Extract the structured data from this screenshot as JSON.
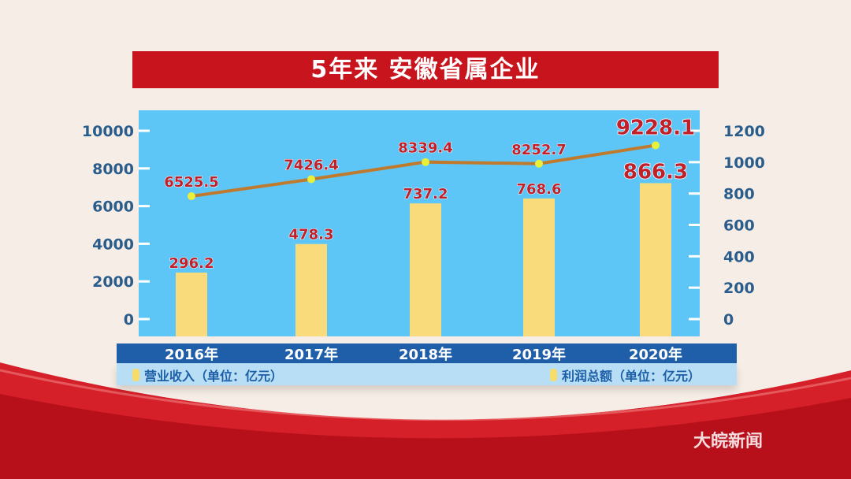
{
  "title": "5年来  安徽省属企业",
  "watermark": "大皖新闻",
  "colors": {
    "title_bg": "#c8141c",
    "panel": "#5ec6f6",
    "bar": "#f9db7c",
    "line": "#c07a2e",
    "point": "#e8f03a",
    "label": "#c0202a",
    "axis_text": "#2b5d8c",
    "xbar": "#1f5ea8"
  },
  "chart_data": {
    "type": "bar+line",
    "categories": [
      "2016年",
      "2017年",
      "2018年",
      "2019年",
      "2020年"
    ],
    "left_axis": {
      "ticks": [
        0,
        2000,
        4000,
        6000,
        8000,
        10000
      ],
      "range": [
        0,
        10000
      ]
    },
    "right_axis": {
      "ticks": [
        0,
        200,
        400,
        600,
        800,
        1000,
        1200
      ],
      "range": [
        0,
        1200
      ]
    },
    "series": [
      {
        "name": "营业收入（单位：亿元）",
        "type": "line",
        "axis": "left",
        "values": [
          6525.5,
          7426.4,
          8339.4,
          8252.7,
          9228.1
        ],
        "labels": [
          "6525.5",
          "7426.4",
          "8339.4",
          "8252.7",
          "9228.1"
        ]
      },
      {
        "name": "利润总额（单位：亿元）",
        "type": "bar",
        "axis": "right",
        "values": [
          296.2,
          478.3,
          737.2,
          768.6,
          866.3
        ],
        "labels": [
          "296.2",
          "478.3",
          "737.2",
          "768.6",
          "866.3"
        ]
      }
    ],
    "legend": [
      "营业收入（单位：亿元）",
      "利润总额（单位：亿元）"
    ],
    "legend_placement": "bottom",
    "grid": false
  }
}
